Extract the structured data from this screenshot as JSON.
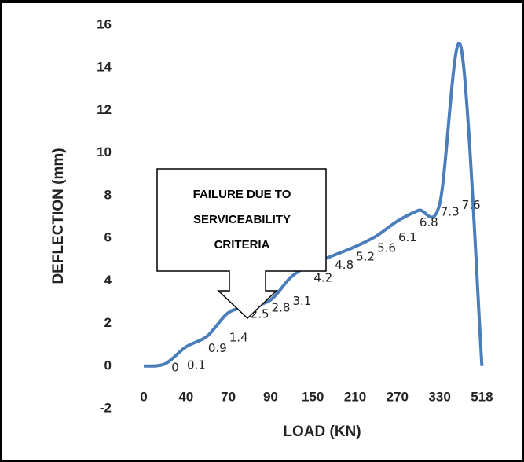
{
  "chart_data": {
    "type": "line",
    "x_label": "LOAD (KN)",
    "y_label": "DEFLECTION (mm)",
    "categories": [
      "0",
      null,
      "40",
      null,
      "70",
      null,
      "90",
      null,
      "150",
      null,
      "210",
      null,
      "270",
      null,
      "330",
      null,
      "518"
    ],
    "series": [
      {
        "name": "Deflection",
        "color": "#4a7ebb",
        "values": [
          0,
          0.1,
          0.9,
          1.4,
          2.5,
          2.8,
          3.1,
          4.2,
          4.8,
          5.2,
          5.6,
          6.1,
          6.8,
          7.3,
          7.6,
          15,
          0
        ],
        "value_labels": [
          "0",
          "0.1",
          "0.9",
          "1.4",
          "2.5",
          "2.8",
          "3.1",
          "4.2",
          "4.8",
          "5.2",
          "5.6",
          "6.1",
          "6.8",
          "7.3",
          "7.6",
          null,
          null
        ]
      }
    ],
    "ylim": [
      -2,
      16
    ],
    "yticks": [
      -2,
      0,
      2,
      4,
      6,
      8,
      10,
      12,
      14,
      16
    ],
    "grid": false,
    "annotations": [
      "FAILURE DUE TO",
      "SERVICEABILITY",
      "CRITERIA"
    ]
  }
}
